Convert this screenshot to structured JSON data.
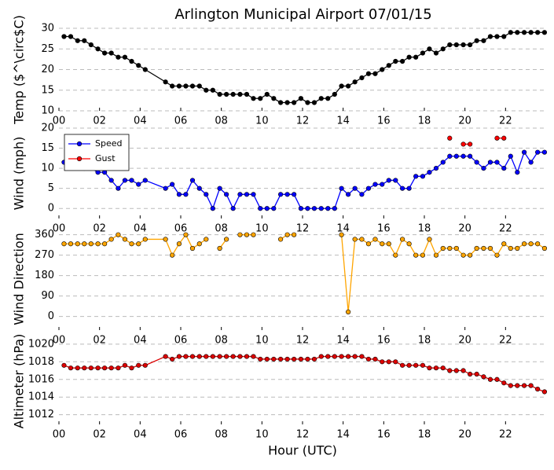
{
  "chart_data": [
    {
      "type": "line",
      "title": "Arlington Municipal Airport 07/01/15",
      "ylabel": "Temp ($^\\circ$C)",
      "x": [
        0.25,
        0.58,
        0.92,
        1.25,
        1.58,
        1.92,
        2.25,
        2.58,
        2.92,
        3.25,
        3.58,
        3.92,
        4.25,
        5.25,
        5.58,
        5.92,
        6.25,
        6.58,
        6.92,
        7.25,
        7.58,
        7.92,
        8.25,
        8.58,
        8.92,
        9.25,
        9.58,
        9.92,
        10.25,
        10.58,
        10.92,
        11.25,
        11.58,
        11.92,
        12.25,
        12.58,
        12.92,
        13.25,
        13.58,
        13.92,
        14.25,
        14.58,
        14.92,
        15.25,
        15.58,
        15.92,
        16.25,
        16.58,
        16.92,
        17.25,
        17.58,
        17.92,
        18.25,
        18.58,
        18.92,
        19.25,
        19.58,
        19.92,
        20.25,
        20.58,
        20.92,
        21.25,
        21.58,
        21.92,
        22.25,
        22.58,
        22.92,
        23.25,
        23.58,
        23.92
      ],
      "xlim": [
        0,
        24
      ],
      "xticks": [
        {
          "value": 0,
          "label": "00"
        },
        {
          "value": 2,
          "label": "02"
        },
        {
          "value": 4,
          "label": "04"
        },
        {
          "value": 6,
          "label": "06"
        },
        {
          "value": 8,
          "label": "08"
        },
        {
          "value": 10,
          "label": "10"
        },
        {
          "value": 12,
          "label": "12"
        },
        {
          "value": 14,
          "label": "14"
        },
        {
          "value": 16,
          "label": "16"
        },
        {
          "value": 18,
          "label": "18"
        },
        {
          "value": 20,
          "label": "20"
        },
        {
          "value": 22,
          "label": "22"
        }
      ],
      "ylim": [
        10,
        30
      ],
      "yticks": [
        10,
        15,
        20,
        25,
        30
      ],
      "grid": true,
      "series": [
        {
          "name": "Temp",
          "color": "#000000",
          "values": [
            28,
            28,
            27,
            27,
            26,
            25,
            24,
            24,
            23,
            23,
            22,
            21,
            20,
            17,
            16,
            16,
            16,
            16,
            16,
            15,
            15,
            14,
            14,
            14,
            14,
            14,
            13,
            13,
            14,
            13,
            12,
            12,
            12,
            13,
            12,
            12,
            13,
            13,
            14,
            16,
            16,
            17,
            18,
            19,
            19,
            20,
            21,
            22,
            22,
            23,
            23,
            24,
            25,
            24,
            25,
            26,
            26,
            26,
            26,
            27,
            27,
            28,
            28,
            28,
            29,
            29,
            29,
            29,
            29,
            29
          ]
        }
      ]
    },
    {
      "type": "line",
      "ylabel": "Wind (mph)",
      "legend": "upper left",
      "x": [
        0.25,
        0.58,
        0.92,
        1.25,
        1.58,
        1.92,
        2.25,
        2.58,
        2.92,
        3.25,
        3.58,
        3.92,
        4.25,
        5.25,
        5.58,
        5.92,
        6.25,
        6.58,
        6.92,
        7.25,
        7.58,
        7.92,
        8.25,
        8.58,
        8.92,
        9.25,
        9.58,
        9.92,
        10.25,
        10.58,
        10.92,
        11.25,
        11.58,
        11.92,
        12.25,
        12.58,
        12.92,
        13.25,
        13.58,
        13.92,
        14.25,
        14.58,
        14.92,
        15.25,
        15.58,
        15.92,
        16.25,
        16.58,
        16.92,
        17.25,
        17.58,
        17.92,
        18.25,
        18.58,
        18.92,
        19.25,
        19.58,
        19.92,
        20.25,
        20.58,
        20.92,
        21.25,
        21.58,
        21.92,
        22.25,
        22.58,
        22.92,
        23.25,
        23.58,
        23.92
      ],
      "xlim": [
        0,
        24
      ],
      "xticks": [
        {
          "value": 0,
          "label": "00"
        },
        {
          "value": 2,
          "label": "02"
        },
        {
          "value": 4,
          "label": "04"
        },
        {
          "value": 6,
          "label": "06"
        },
        {
          "value": 8,
          "label": "08"
        },
        {
          "value": 10,
          "label": "10"
        },
        {
          "value": 12,
          "label": "12"
        },
        {
          "value": 14,
          "label": "14"
        },
        {
          "value": 16,
          "label": "16"
        },
        {
          "value": 18,
          "label": "18"
        },
        {
          "value": 20,
          "label": "20"
        },
        {
          "value": 22,
          "label": "22"
        }
      ],
      "ylim": [
        -2.5,
        20
      ],
      "yticks": [
        0,
        5,
        10,
        15,
        20
      ],
      "grid": true,
      "series": [
        {
          "name": "Speed",
          "color": "#0000ff",
          "values": [
            11.5,
            11,
            11,
            10,
            10,
            9,
            9,
            7,
            5,
            7,
            7,
            6,
            7,
            5,
            6,
            3.5,
            3.5,
            7,
            5,
            3.5,
            0,
            5,
            3.5,
            0,
            3.5,
            3.5,
            3.5,
            0,
            0,
            0,
            3.5,
            3.5,
            3.5,
            0,
            0,
            0,
            0,
            0,
            0,
            5,
            3.5,
            5,
            3.5,
            5,
            6,
            6,
            7,
            7,
            5,
            5,
            8,
            8,
            9,
            10,
            11.5,
            13,
            13,
            13,
            13,
            11.5,
            10,
            11.5,
            11.5,
            10,
            13,
            9,
            14,
            11.5,
            14,
            14
          ]
        },
        {
          "name": "Gust",
          "color": "#ff0000",
          "values": [
            null,
            null,
            null,
            null,
            null,
            null,
            null,
            null,
            null,
            null,
            null,
            null,
            null,
            null,
            null,
            null,
            null,
            null,
            null,
            null,
            null,
            null,
            null,
            null,
            null,
            null,
            null,
            null,
            null,
            null,
            null,
            null,
            null,
            null,
            null,
            null,
            null,
            null,
            null,
            null,
            null,
            null,
            null,
            null,
            null,
            null,
            null,
            null,
            null,
            null,
            null,
            null,
            null,
            null,
            null,
            17.5,
            null,
            16,
            16,
            null,
            null,
            null,
            17.5,
            17.5,
            null,
            null,
            null,
            null,
            null,
            null
          ]
        }
      ]
    },
    {
      "type": "line",
      "ylabel": "Wind Direction",
      "x": [
        0.25,
        0.58,
        0.92,
        1.25,
        1.58,
        1.92,
        2.25,
        2.58,
        2.92,
        3.25,
        3.58,
        3.92,
        4.25,
        5.25,
        5.58,
        5.92,
        6.25,
        6.58,
        6.92,
        7.25,
        7.58,
        7.92,
        8.25,
        8.58,
        8.92,
        9.25,
        9.58,
        9.92,
        10.25,
        10.58,
        10.92,
        11.25,
        11.58,
        11.92,
        12.25,
        12.58,
        12.92,
        13.25,
        13.58,
        13.92,
        14.25,
        14.58,
        14.92,
        15.25,
        15.58,
        15.92,
        16.25,
        16.58,
        16.92,
        17.25,
        17.58,
        17.92,
        18.25,
        18.58,
        18.92,
        19.25,
        19.58,
        19.92,
        20.25,
        20.58,
        20.92,
        21.25,
        21.58,
        21.92,
        22.25,
        22.58,
        22.92,
        23.25,
        23.58,
        23.92
      ],
      "xlim": [
        0,
        24
      ],
      "xticks": [
        {
          "value": 0,
          "label": "00"
        },
        {
          "value": 2,
          "label": "02"
        },
        {
          "value": 4,
          "label": "04"
        },
        {
          "value": 6,
          "label": "06"
        },
        {
          "value": 8,
          "label": "08"
        },
        {
          "value": 10,
          "label": "10"
        },
        {
          "value": 12,
          "label": "12"
        },
        {
          "value": 14,
          "label": "14"
        },
        {
          "value": 16,
          "label": "16"
        },
        {
          "value": 18,
          "label": "18"
        },
        {
          "value": 20,
          "label": "20"
        },
        {
          "value": 22,
          "label": "22"
        }
      ],
      "ylim": [
        -60,
        390
      ],
      "yticks": [
        0,
        90,
        180,
        270,
        360
      ],
      "grid": true,
      "series": [
        {
          "name": "Direction",
          "color": "#ffa500",
          "values": [
            320,
            320,
            320,
            320,
            320,
            320,
            320,
            340,
            360,
            340,
            320,
            320,
            340,
            340,
            270,
            320,
            360,
            300,
            320,
            340,
            null,
            300,
            340,
            null,
            360,
            360,
            360,
            null,
            null,
            null,
            340,
            360,
            360,
            null,
            null,
            null,
            null,
            null,
            null,
            360,
            20,
            340,
            340,
            320,
            340,
            320,
            320,
            270,
            340,
            320,
            270,
            270,
            340,
            270,
            300,
            300,
            300,
            270,
            270,
            300,
            300,
            300,
            270,
            320,
            300,
            300,
            320,
            320,
            320,
            300
          ]
        }
      ]
    },
    {
      "type": "line",
      "ylabel": "Altimeter (hPa)",
      "xlabel": "Hour (UTC)",
      "x": [
        0.25,
        0.58,
        0.92,
        1.25,
        1.58,
        1.92,
        2.25,
        2.58,
        2.92,
        3.25,
        3.58,
        3.92,
        4.25,
        5.25,
        5.58,
        5.92,
        6.25,
        6.58,
        6.92,
        7.25,
        7.58,
        7.92,
        8.25,
        8.58,
        8.92,
        9.25,
        9.58,
        9.92,
        10.25,
        10.58,
        10.92,
        11.25,
        11.58,
        11.92,
        12.25,
        12.58,
        12.92,
        13.25,
        13.58,
        13.92,
        14.25,
        14.58,
        14.92,
        15.25,
        15.58,
        15.92,
        16.25,
        16.58,
        16.92,
        17.25,
        17.58,
        17.92,
        18.25,
        18.58,
        18.92,
        19.25,
        19.58,
        19.92,
        20.25,
        20.58,
        20.92,
        21.25,
        21.58,
        21.92,
        22.25,
        22.58,
        22.92,
        23.25,
        23.58,
        23.92
      ],
      "xlim": [
        0,
        24
      ],
      "xticks": [
        {
          "value": 0,
          "label": "00"
        },
        {
          "value": 2,
          "label": "02"
        },
        {
          "value": 4,
          "label": "04"
        },
        {
          "value": 6,
          "label": "06"
        },
        {
          "value": 8,
          "label": "08"
        },
        {
          "value": 10,
          "label": "10"
        },
        {
          "value": 12,
          "label": "12"
        },
        {
          "value": 14,
          "label": "14"
        },
        {
          "value": 16,
          "label": "16"
        },
        {
          "value": 18,
          "label": "18"
        },
        {
          "value": 20,
          "label": "20"
        },
        {
          "value": 22,
          "label": "22"
        }
      ],
      "ylim": [
        1010.9,
        1020.7
      ],
      "yticks": [
        1012,
        1014,
        1016,
        1018,
        1020
      ],
      "grid": true,
      "series": [
        {
          "name": "Altimeter",
          "color": "#dd0000",
          "values": [
            1017.6,
            1017.3,
            1017.3,
            1017.3,
            1017.3,
            1017.3,
            1017.3,
            1017.3,
            1017.3,
            1017.6,
            1017.3,
            1017.6,
            1017.6,
            1018.6,
            1018.3,
            1018.6,
            1018.6,
            1018.6,
            1018.6,
            1018.6,
            1018.6,
            1018.6,
            1018.6,
            1018.6,
            1018.6,
            1018.6,
            1018.6,
            1018.3,
            1018.3,
            1018.3,
            1018.3,
            1018.3,
            1018.3,
            1018.3,
            1018.3,
            1018.3,
            1018.6,
            1018.6,
            1018.6,
            1018.6,
            1018.6,
            1018.6,
            1018.6,
            1018.3,
            1018.3,
            1018.0,
            1018.0,
            1018.0,
            1017.6,
            1017.6,
            1017.6,
            1017.6,
            1017.3,
            1017.3,
            1017.3,
            1017.0,
            1017.0,
            1017.0,
            1016.6,
            1016.6,
            1016.3,
            1016.0,
            1016.0,
            1015.6,
            1015.3,
            1015.3,
            1015.3,
            1015.3,
            1014.9,
            1014.6
          ]
        }
      ]
    }
  ]
}
